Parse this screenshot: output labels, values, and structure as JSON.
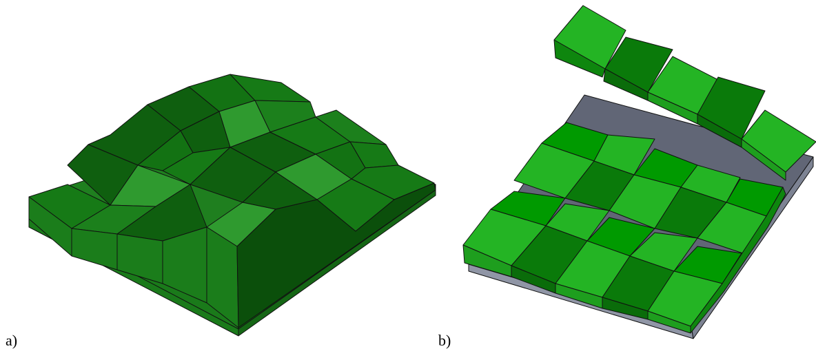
{
  "panels": [
    {
      "label": "a)"
    },
    {
      "label": "b)"
    }
  ],
  "colors": {
    "panel_a": {
      "top": "#167a16",
      "top_alt": "#0f5f0f",
      "top_light": "#2f9a2f",
      "ramp": "#0d640d",
      "side": "#1b7d1b",
      "side_dark": "#0b4f0b",
      "base_top": "#1f7f1f",
      "base_side": "#1a7a1a"
    },
    "panel_b": {
      "top": "#24b424",
      "top_alt": "#0a7a0a",
      "top_mid": "#009a00",
      "ramp": "#0e860e",
      "side": "#1e9e1e",
      "side_dark": "#0a6c0a",
      "plate_top": "#616676",
      "plate_side": "#9096a6"
    }
  }
}
